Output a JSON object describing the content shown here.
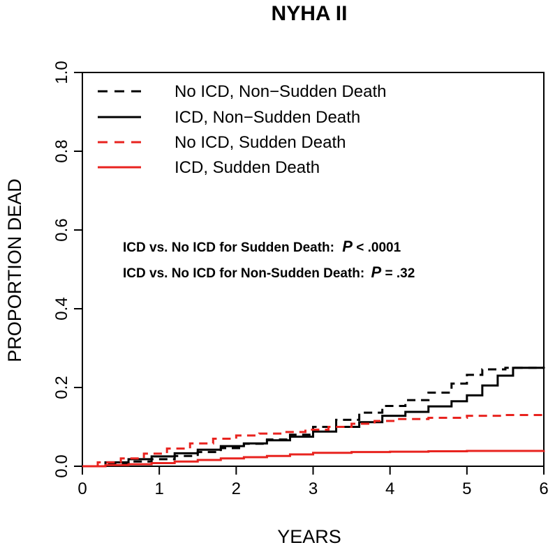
{
  "chart_data": {
    "type": "line",
    "title": "NYHA II",
    "xlabel": "YEARS",
    "ylabel": "PROPORTION DEAD",
    "xlim": [
      0,
      6
    ],
    "ylim": [
      0,
      1
    ],
    "x_ticks": [
      "0",
      "1",
      "2",
      "3",
      "4",
      "5",
      "6"
    ],
    "y_ticks": [
      "0.0",
      "0.2",
      "0.4",
      "0.6",
      "0.8",
      "1.0"
    ],
    "grid": false,
    "legend_position": "top-left",
    "series": [
      {
        "name": "No ICD, Non−Sudden Death",
        "color": "#000000",
        "dash": "dashed",
        "step": true,
        "points": [
          [
            0,
            0
          ],
          [
            0.3,
            0.006
          ],
          [
            0.6,
            0.012
          ],
          [
            0.9,
            0.018
          ],
          [
            1.2,
            0.026
          ],
          [
            1.5,
            0.036
          ],
          [
            1.8,
            0.046
          ],
          [
            2.1,
            0.057
          ],
          [
            2.4,
            0.068
          ],
          [
            2.7,
            0.08
          ],
          [
            3.0,
            0.1
          ],
          [
            3.3,
            0.118
          ],
          [
            3.6,
            0.136
          ],
          [
            3.9,
            0.153
          ],
          [
            4.2,
            0.168
          ],
          [
            4.5,
            0.187
          ],
          [
            4.8,
            0.21
          ],
          [
            5.0,
            0.232
          ],
          [
            5.2,
            0.246
          ],
          [
            5.5,
            0.25
          ],
          [
            6.0,
            0.248
          ]
        ]
      },
      {
        "name": "ICD, Non−Sudden Death",
        "color": "#000000",
        "dash": "solid",
        "step": true,
        "points": [
          [
            0,
            0
          ],
          [
            0.3,
            0.01
          ],
          [
            0.6,
            0.018
          ],
          [
            0.9,
            0.025
          ],
          [
            1.2,
            0.033
          ],
          [
            1.5,
            0.042
          ],
          [
            1.8,
            0.051
          ],
          [
            2.1,
            0.058
          ],
          [
            2.4,
            0.066
          ],
          [
            2.7,
            0.075
          ],
          [
            3.0,
            0.088
          ],
          [
            3.3,
            0.1
          ],
          [
            3.6,
            0.112
          ],
          [
            3.9,
            0.128
          ],
          [
            4.2,
            0.138
          ],
          [
            4.5,
            0.152
          ],
          [
            4.8,
            0.165
          ],
          [
            5.0,
            0.18
          ],
          [
            5.2,
            0.205
          ],
          [
            5.4,
            0.23
          ],
          [
            5.6,
            0.25
          ],
          [
            6.0,
            0.25
          ]
        ]
      },
      {
        "name": "No ICD, Sudden Death",
        "color": "#e8231f",
        "dash": "dashed",
        "step": true,
        "points": [
          [
            0,
            0
          ],
          [
            0.2,
            0.01
          ],
          [
            0.5,
            0.02
          ],
          [
            0.8,
            0.032
          ],
          [
            1.1,
            0.045
          ],
          [
            1.4,
            0.058
          ],
          [
            1.7,
            0.07
          ],
          [
            2.0,
            0.078
          ],
          [
            2.3,
            0.083
          ],
          [
            2.6,
            0.087
          ],
          [
            2.9,
            0.093
          ],
          [
            3.2,
            0.1
          ],
          [
            3.5,
            0.108
          ],
          [
            3.8,
            0.115
          ],
          [
            4.1,
            0.12
          ],
          [
            4.5,
            0.123
          ],
          [
            5.0,
            0.128
          ],
          [
            5.5,
            0.13
          ],
          [
            6.0,
            0.13
          ]
        ]
      },
      {
        "name": "ICD, Sudden Death",
        "color": "#e8231f",
        "dash": "solid",
        "step": true,
        "points": [
          [
            0,
            0
          ],
          [
            0.3,
            0.003
          ],
          [
            0.6,
            0.005
          ],
          [
            0.9,
            0.008
          ],
          [
            1.2,
            0.012
          ],
          [
            1.5,
            0.016
          ],
          [
            1.8,
            0.02
          ],
          [
            2.1,
            0.023
          ],
          [
            2.4,
            0.026
          ],
          [
            2.7,
            0.03
          ],
          [
            3.0,
            0.034
          ],
          [
            3.5,
            0.036
          ],
          [
            4.0,
            0.037
          ],
          [
            4.5,
            0.038
          ],
          [
            5.0,
            0.039
          ],
          [
            6.0,
            0.04
          ]
        ]
      }
    ],
    "annotations": [
      {
        "text": "ICD vs. No ICD for Sudden Death:",
        "p_symbol": "P",
        "p_value": " < .0001"
      },
      {
        "text": "ICD vs. No ICD for Non-Sudden Death:",
        "p_symbol": "P",
        "p_value": " = .32"
      }
    ]
  }
}
